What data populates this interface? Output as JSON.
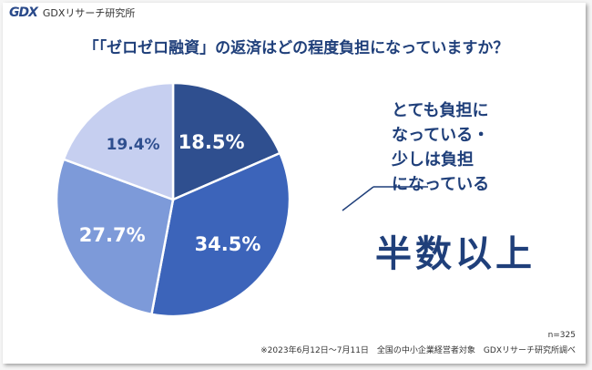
{
  "brand": {
    "mark": "GDX",
    "name": "GDXリサーチ研究所"
  },
  "title": "「「ゼロゼロ融資」の返済はどの程度負担になっていますか？",
  "callout": {
    "lines": [
      "とても負担に",
      "なっている・",
      "少しは負担",
      "になっている"
    ]
  },
  "headline": "半数以上",
  "sample_size": "n=325",
  "footnote": "※2023年6月12日～7月11日　全国の中小企業経営者対象　GDXリサーチ研究所調べ",
  "colors": [
    "#2f4f8f",
    "#3c64ba",
    "#7d9ad9",
    "#c6cff0"
  ],
  "chart_data": {
    "type": "pie",
    "start_angle_deg": 0,
    "slices": [
      {
        "label": "18.5%",
        "value": 18.5
      },
      {
        "label": "34.5%",
        "value": 34.5
      },
      {
        "label": "27.7%",
        "value": 27.7
      },
      {
        "label": "19.4%",
        "value": 19.4
      }
    ]
  }
}
